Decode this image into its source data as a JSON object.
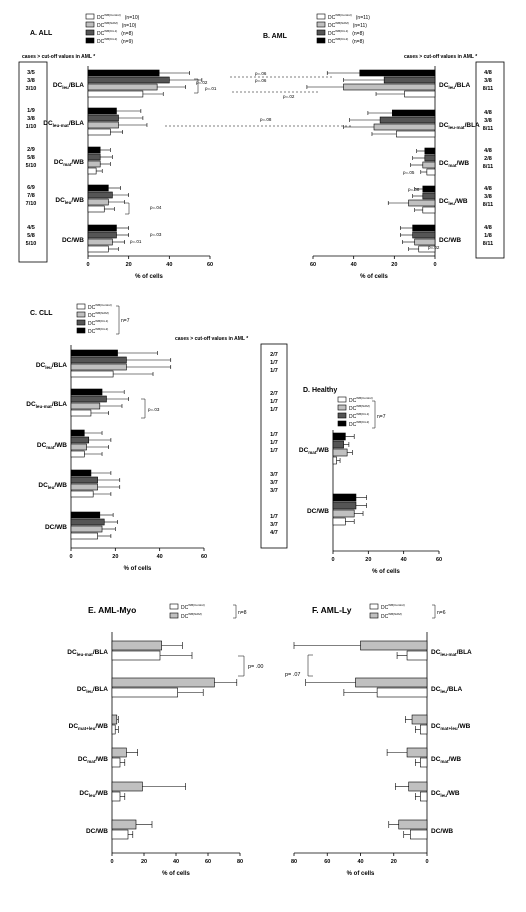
{
  "colors": {
    "white": "#ffffff",
    "light_gray": "#c0c0c0",
    "dark_gray": "#555555",
    "black": "#000000"
  },
  "chart_data": [
    {
      "id": "A",
      "type": "bar",
      "title": "A. ALL",
      "xlabel": "% of cells",
      "orientation": "horizontal",
      "xlim": [
        0,
        60
      ],
      "cutoff_header": "cases > cut-off values in AML *",
      "legend": [
        {
          "label": "DC",
          "sup": "WB(Control)",
          "n": "(n=10)"
        },
        {
          "label": "DC",
          "sup": "WB(NAM)",
          "n": "(n=10)"
        },
        {
          "label": "DC",
          "sup": "WB(Kit-1)",
          "n": "(n=8)"
        },
        {
          "label": "DC",
          "sup": "WB(Kit-2)",
          "n": "(n=9)"
        }
      ],
      "categories": [
        {
          "label": "DC",
          "sub": "leu",
          "suffix": "/BLA",
          "values": [
            27,
            34,
            40,
            35
          ],
          "err": [
            10,
            14,
            16,
            15
          ],
          "cutoff": [
            "3/5",
            "3/8",
            "3/10"
          ]
        },
        {
          "label": "DC",
          "sub": "leu-mat",
          "suffix": "/BLA",
          "values": [
            11,
            15,
            15,
            14
          ],
          "err": [
            6,
            14,
            12,
            12
          ],
          "cutoff": [
            "1/9",
            "3/8",
            "1/10"
          ]
        },
        {
          "label": "DC",
          "sub": "mat",
          "suffix": "/WB",
          "values": [
            4,
            6,
            6,
            6
          ],
          "err": [
            3,
            5,
            6,
            5
          ],
          "cutoff": [
            "2/9",
            "5/8",
            "5/10"
          ]
        },
        {
          "label": "DC",
          "sub": "leu",
          "suffix": "/WB",
          "values": [
            8,
            10,
            12,
            10
          ],
          "err": [
            5,
            8,
            8,
            6
          ],
          "cutoff": [
            "6/9",
            "7/8",
            "7/10"
          ]
        },
        {
          "label": "DC",
          "sub": "",
          "suffix": "/WB",
          "values": [
            10,
            12,
            14,
            14
          ],
          "err": [
            5,
            6,
            6,
            6
          ],
          "cutoff": [
            "4/5",
            "5/8",
            "5/10"
          ]
        }
      ],
      "pvalues": [
        "p=.01",
        "p=.02",
        "p=.04",
        "p=.01",
        "p=.03"
      ],
      "xticks": [
        "0",
        "20",
        "40",
        "60"
      ]
    },
    {
      "id": "B",
      "type": "bar",
      "title": "B. AML",
      "xlabel": "% of cells",
      "orientation": "horizontal-reversed",
      "xlim": [
        0,
        60
      ],
      "cutoff_header": "cases > cut-off values in AML *",
      "legend": [
        {
          "label": "DC",
          "sup": "WB(Control)",
          "n": "(n=11)"
        },
        {
          "label": "DC",
          "sup": "WB(NAM)",
          "n": "(n=11)"
        },
        {
          "label": "DC",
          "sup": "WB(Kit-1)",
          "n": "(n=8)"
        },
        {
          "label": "DC",
          "sup": "WB(Kit-2)",
          "n": "(n=8)"
        }
      ],
      "categories": [
        {
          "label": "DC",
          "sub": "leu",
          "suffix": "/BLA",
          "values": [
            15,
            45,
            25,
            37
          ],
          "err": [
            14,
            18,
            20,
            16
          ],
          "cutoff": [
            "4/8",
            "3/8",
            "8/11"
          ]
        },
        {
          "label": "DC",
          "sub": "leu-mat",
          "suffix": "/BLA",
          "values": [
            19,
            30,
            27,
            21
          ],
          "err": [
            12,
            15,
            15,
            12
          ],
          "cutoff": [
            "4/8",
            "3/8",
            "8/11"
          ]
        },
        {
          "label": "DC",
          "sub": "mat",
          "suffix": "/WB",
          "values": [
            4,
            6,
            5,
            5
          ],
          "err": [
            3,
            6,
            6,
            4
          ],
          "cutoff": [
            "4/8",
            "2/8",
            "8/11"
          ]
        },
        {
          "label": "DC",
          "sub": "leu",
          "suffix": "/WB",
          "values": [
            6,
            13,
            6,
            6
          ],
          "err": [
            4,
            10,
            5,
            4
          ],
          "cutoff": [
            "4/8",
            "3/8",
            "8/11"
          ]
        },
        {
          "label": "DC",
          "sub": "",
          "suffix": "/WB",
          "values": [
            8,
            10,
            11,
            11
          ],
          "err": [
            5,
            6,
            6,
            6
          ],
          "cutoff": [
            "4/8",
            "1/8",
            "8/11"
          ]
        }
      ],
      "pvalues": [
        "p=.06",
        "p=.06",
        "p=.08",
        "p=.02",
        "p=.05",
        "p=.08",
        "p=.02"
      ],
      "xticks": [
        "60",
        "40",
        "20",
        "0"
      ]
    },
    {
      "id": "C",
      "type": "bar",
      "title": "C. CLL",
      "xlabel": "% of cells",
      "orientation": "horizontal",
      "xlim": [
        0,
        60
      ],
      "cutoff_header": "cases > cut-off values in AML *",
      "legend": [
        {
          "label": "DC",
          "sup": "WB(Control)"
        },
        {
          "label": "DC",
          "sup": "WB(NAM)"
        },
        {
          "label": "DC",
          "sup": "WB(Kit-1)"
        },
        {
          "label": "DC",
          "sup": "WB(Kit-2)"
        }
      ],
      "legend_n": "n=7",
      "categories": [
        {
          "label": "DC",
          "sub": "leu",
          "suffix": "/BLA",
          "values": [
            19,
            25,
            25,
            21
          ],
          "err": [
            18,
            20,
            20,
            18
          ],
          "cutoff": [
            "2/7",
            "1/7",
            "1/7"
          ]
        },
        {
          "label": "DC",
          "sub": "leu-mat",
          "suffix": "/BLA",
          "values": [
            9,
            13,
            16,
            14
          ],
          "err": [
            8,
            10,
            10,
            10
          ],
          "cutoff": [
            "2/7",
            "1/7",
            "1/7"
          ]
        },
        {
          "label": "DC",
          "sub": "mat",
          "suffix": "/WB",
          "values": [
            6,
            7,
            8,
            6
          ],
          "err": [
            8,
            10,
            10,
            8
          ],
          "cutoff": [
            "1/7",
            "1/7",
            "1/7"
          ]
        },
        {
          "label": "DC",
          "sub": "leu",
          "suffix": "/WB",
          "values": [
            10,
            12,
            12,
            9
          ],
          "err": [
            8,
            10,
            10,
            9
          ],
          "cutoff": [
            "3/7",
            "3/7",
            "3/7"
          ]
        },
        {
          "label": "DC",
          "sub": "",
          "suffix": "/WB",
          "values": [
            12,
            14,
            15,
            13
          ],
          "err": [
            6,
            6,
            6,
            6
          ],
          "cutoff": [
            "1/7",
            "3/7",
            "4/7"
          ]
        }
      ],
      "pvalues": [
        "p=.03"
      ],
      "xticks": [
        "0",
        "20",
        "40",
        "60"
      ]
    },
    {
      "id": "D",
      "type": "bar",
      "title": "D. Healthy",
      "xlabel": "% of cells",
      "orientation": "horizontal",
      "xlim": [
        0,
        60
      ],
      "legend": [
        {
          "label": "DC",
          "sup": "WB(Control)"
        },
        {
          "label": "DC",
          "sup": "WB(NAM)"
        },
        {
          "label": "DC",
          "sup": "WB(Kit-1)"
        },
        {
          "label": "DC",
          "sup": "WB(Kit-2)"
        }
      ],
      "legend_n": "n=7",
      "categories": [
        {
          "label": "DC",
          "sub": "mat",
          "suffix": "/WB",
          "values": [
            2,
            8,
            6,
            7
          ],
          "err": [
            2,
            3,
            3,
            5
          ]
        },
        {
          "label": "DC",
          "sub": "",
          "suffix": "/WB",
          "values": [
            7,
            12,
            13,
            13
          ],
          "err": [
            5,
            5,
            6,
            6
          ]
        }
      ],
      "xticks": [
        "0",
        "20",
        "40",
        "60"
      ]
    },
    {
      "id": "E",
      "type": "bar",
      "title": "E. AML-Myo",
      "xlabel": "% of cells",
      "orientation": "horizontal",
      "xlim": [
        0,
        80
      ],
      "legend": [
        {
          "label": "DC",
          "sup": "WB(Control)"
        },
        {
          "label": "DC",
          "sup": "WB(NAM)"
        }
      ],
      "legend_n": "n=8",
      "categories": [
        {
          "label": "DC",
          "sub": "leu-mat",
          "suffix": "/BLA",
          "values": [
            30,
            31
          ],
          "err": [
            20,
            13
          ]
        },
        {
          "label": "DC",
          "sub": "leu",
          "suffix": "/BLA",
          "values": [
            41,
            64
          ],
          "err": [
            16,
            14
          ]
        },
        {
          "label": "DC",
          "sub": "mat+leu",
          "suffix": "/WB",
          "values": [
            2,
            3
          ],
          "err": [
            2,
            1
          ]
        },
        {
          "label": "DC",
          "sub": "mat",
          "suffix": "/WB",
          "values": [
            5,
            9
          ],
          "err": [
            3,
            7
          ]
        },
        {
          "label": "DC",
          "sub": "leu",
          "suffix": "/WB",
          "values": [
            5,
            19
          ],
          "err": [
            3,
            27
          ]
        },
        {
          "label": "DC",
          "sub": "",
          "suffix": "/WB",
          "values": [
            10,
            15
          ],
          "err": [
            3,
            10
          ]
        }
      ],
      "pvalues": [
        "p= .00"
      ],
      "xticks": [
        "0",
        "20",
        "40",
        "60",
        "80"
      ]
    },
    {
      "id": "F",
      "type": "bar",
      "title": "F. AML-Ly",
      "xlabel": "% of cells",
      "orientation": "horizontal-reversed",
      "xlim": [
        0,
        80
      ],
      "legend": [
        {
          "label": "DC",
          "sup": "WB(Control)"
        },
        {
          "label": "DC",
          "sup": "WB(NAM)"
        }
      ],
      "legend_n": "n=6",
      "categories": [
        {
          "label": "DC",
          "sub": "leu-mat",
          "suffix": "/BLA",
          "values": [
            12,
            40
          ],
          "err": [
            6,
            40
          ]
        },
        {
          "label": "DC",
          "sub": "leu",
          "suffix": "/BLA",
          "values": [
            30,
            43
          ],
          "err": [
            20,
            30
          ]
        },
        {
          "label": "DC",
          "sub": "mat+leu",
          "suffix": "/WB",
          "values": [
            4,
            9
          ],
          "err": [
            3,
            4
          ]
        },
        {
          "label": "DC",
          "sub": "mat",
          "suffix": "/WB",
          "values": [
            4,
            12
          ],
          "err": [
            3,
            12
          ]
        },
        {
          "label": "DC",
          "sub": "leu",
          "suffix": "/WB",
          "values": [
            4,
            11
          ],
          "err": [
            3,
            8
          ]
        },
        {
          "label": "DC",
          "sub": "",
          "suffix": "/WB",
          "values": [
            10,
            17
          ],
          "err": [
            4,
            6
          ]
        }
      ],
      "pvalues": [
        "p= .07"
      ],
      "xticks": [
        "80",
        "60",
        "40",
        "20",
        "0"
      ]
    }
  ]
}
